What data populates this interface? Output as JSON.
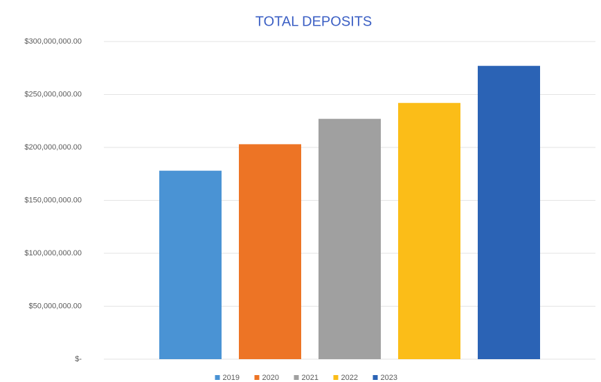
{
  "chart_data": {
    "type": "bar",
    "title": "TOTAL DEPOSITS",
    "categories": [
      null
    ],
    "series": [
      {
        "name": "2019",
        "color": "#4a93d4",
        "values": [
          178000000
        ]
      },
      {
        "name": "2020",
        "color": "#ed7425",
        "values": [
          203000000
        ]
      },
      {
        "name": "2021",
        "color": "#a0a0a0",
        "values": [
          227000000
        ]
      },
      {
        "name": "2022",
        "color": "#fbbd18",
        "values": [
          242000000
        ]
      },
      {
        "name": "2023",
        "color": "#2b63b5",
        "values": [
          277000000
        ]
      }
    ],
    "ylim": [
      0,
      300000000
    ],
    "yticks": [
      {
        "value": 0,
        "label": "$-"
      },
      {
        "value": 50000000,
        "label": "$50,000,000.00"
      },
      {
        "value": 100000000,
        "label": "$100,000,000.00"
      },
      {
        "value": 150000000,
        "label": "$150,000,000.00"
      },
      {
        "value": 200000000,
        "label": "$200,000,000.00"
      },
      {
        "value": 250000000,
        "label": "$250,000,000.00"
      },
      {
        "value": 300000000,
        "label": "$300,000,000.00"
      }
    ],
    "grid": true,
    "legend": "bottom"
  }
}
